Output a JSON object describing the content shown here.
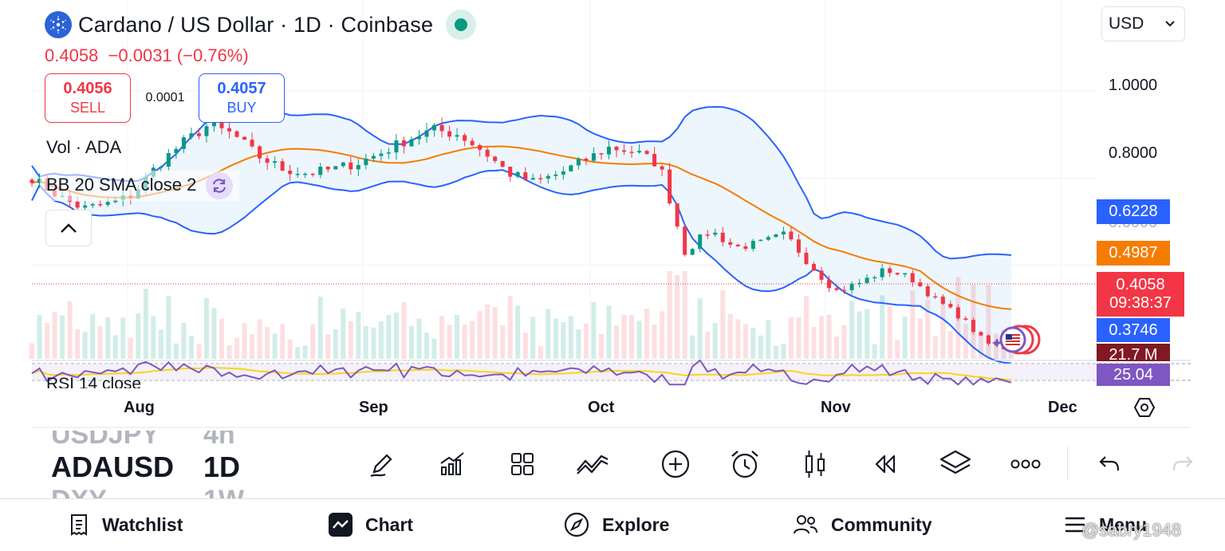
{
  "header": {
    "title": "Cardano / US Dollar · 1D · Coinbase",
    "last_price": "0.4058",
    "change": "−0.0031 (−0.76%)",
    "currency": "USD"
  },
  "trade": {
    "sell_price": "0.4056",
    "sell_label": "SELL",
    "spread": "0.0001",
    "buy_price": "0.4057",
    "buy_label": "BUY"
  },
  "legend": {
    "volume": "Vol · ADA",
    "bollinger": "BB 20 SMA close 2",
    "rsi": "RSI 14 close"
  },
  "price_axis": {
    "labels": [
      "1.0000",
      "0.8000"
    ],
    "partial_label": "0.6000",
    "upper_band": "0.6228",
    "basis": "0.4987",
    "last": "0.4058",
    "countdown": "09:38:37",
    "lower_band": "0.3746",
    "volume": "21.7 M",
    "rsi": "25.04"
  },
  "time_axis": [
    "Aug",
    "Sep",
    "Oct",
    "Nov",
    "Dec"
  ],
  "symbols": [
    {
      "symbol": "USDJPY",
      "interval": "4h"
    },
    {
      "symbol": "ADAUSD",
      "interval": "1D"
    },
    {
      "symbol": "DXY",
      "interval": "1W"
    }
  ],
  "toolbar": [
    "draw-pen-icon",
    "indicators-icon",
    "layouts-grid-icon",
    "drawing-tools-icon",
    "add-circle-icon",
    "alarm-clock-icon",
    "candles-icon",
    "replay-icon",
    "layers-icon",
    "more-dots-icon",
    "undo-icon",
    "redo-icon"
  ],
  "bottom_nav": {
    "watchlist": "Watchlist",
    "chart": "Chart",
    "explore": "Explore",
    "community": "Community",
    "menu": "Menu"
  },
  "watermark": "@sabry1948",
  "colors": {
    "up": "#089981",
    "down": "#f23645",
    "upper_band": "#2962ff",
    "basis": "#f57c00",
    "rsi": "#7e57c2",
    "lower_band_tag": "#2962ff",
    "volume_tag": "#801922",
    "band_fill": "#e3f0fb"
  },
  "chart_data": {
    "type": "candlestick",
    "symbol": "ADAUSD",
    "interval": "1D",
    "price_range": [
      0.33,
      1.08
    ],
    "indicators": {
      "bollinger": {
        "upper": 0.6228,
        "basis": 0.4987,
        "lower": 0.3746
      },
      "volume_last": "21.7 M",
      "rsi_last": 25.04
    },
    "x_labels": [
      "Aug",
      "Sep",
      "Oct",
      "Nov",
      "Dec"
    ],
    "close_path": [
      {
        "t": "Jul 19",
        "close": 0.8
      },
      {
        "t": "Jul 24",
        "close": 0.76
      },
      {
        "t": "Jul 28",
        "close": 0.73
      },
      {
        "t": "Aug 2",
        "close": 0.74
      },
      {
        "t": "Aug 5",
        "close": 0.76
      },
      {
        "t": "Aug 8",
        "close": 0.83
      },
      {
        "t": "Aug 10",
        "close": 0.88
      },
      {
        "t": "Aug 13",
        "close": 0.92
      },
      {
        "t": "Aug 16",
        "close": 0.9
      },
      {
        "t": "Aug 19",
        "close": 0.85
      },
      {
        "t": "Aug 23",
        "close": 0.82
      },
      {
        "t": "Aug 27",
        "close": 0.81
      },
      {
        "t": "Aug 30",
        "close": 0.82
      },
      {
        "t": "Sep 2",
        "close": 0.835
      },
      {
        "t": "Sep 5",
        "close": 0.86
      },
      {
        "t": "Sep 8",
        "close": 0.89
      },
      {
        "t": "Sep 11",
        "close": 0.91
      },
      {
        "t": "Sep 14",
        "close": 0.9
      },
      {
        "t": "Sep 18",
        "close": 0.86
      },
      {
        "t": "Sep 22",
        "close": 0.81
      },
      {
        "t": "Sep 25",
        "close": 0.79
      },
      {
        "t": "Sep 28",
        "close": 0.81
      },
      {
        "t": "Oct 1",
        "close": 0.84
      },
      {
        "t": "Oct 4",
        "close": 0.87
      },
      {
        "t": "Oct 7",
        "close": 0.86
      },
      {
        "t": "Oct 10",
        "close": 0.83
      },
      {
        "t": "Oct 13",
        "close": 0.63
      },
      {
        "t": "Oct 16",
        "close": 0.68
      },
      {
        "t": "Oct 20",
        "close": 0.64
      },
      {
        "t": "Oct 24",
        "close": 0.65
      },
      {
        "t": "Oct 28",
        "close": 0.67
      },
      {
        "t": "Nov 1",
        "close": 0.6
      },
      {
        "t": "Nov 4",
        "close": 0.54
      },
      {
        "t": "Nov 6",
        "close": 0.56
      },
      {
        "t": "Nov 9",
        "close": 0.59
      },
      {
        "t": "Nov 12",
        "close": 0.57
      },
      {
        "t": "Nov 15",
        "close": 0.52
      },
      {
        "t": "Nov 18",
        "close": 0.48
      },
      {
        "t": "Nov 21",
        "close": 0.42
      },
      {
        "t": "Nov 24",
        "close": 0.4058
      }
    ]
  }
}
